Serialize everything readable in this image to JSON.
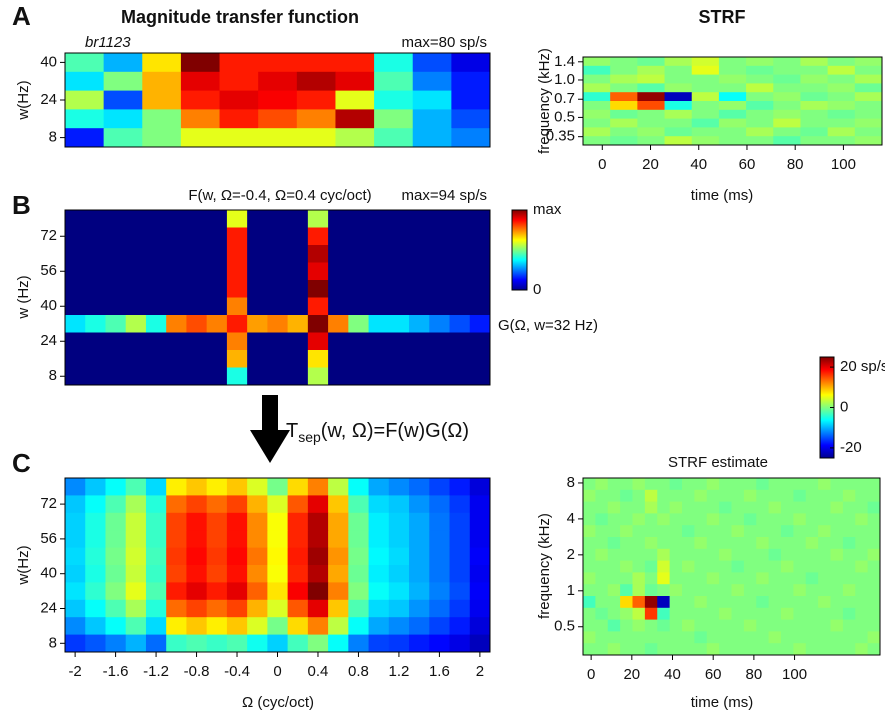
{
  "panel_labels": [
    "A",
    "B",
    "C"
  ],
  "column_titles": [
    "Magnitude transfer function",
    "STRF"
  ],
  "equation": {
    "base": "T",
    "sub": "sep",
    "rest": "(w, Ω)=F(w)G(Ω)"
  },
  "chart_data": [
    {
      "type": "heatmap",
      "annotations": [
        "br1123",
        "max=80 sp/s"
      ],
      "ylabel": "w(Hz)",
      "ylim": [
        4,
        44
      ],
      "yticks": [
        8,
        24,
        40
      ],
      "clim": [
        0,
        1
      ],
      "values": [
        [
          0.45,
          0.3,
          0.65,
          1.0,
          0.85,
          0.85,
          0.85,
          0.85,
          0.4,
          0.2,
          0.1
        ],
        [
          0.35,
          0.5,
          0.7,
          0.9,
          0.85,
          0.9,
          0.95,
          0.9,
          0.45,
          0.25,
          0.15
        ],
        [
          0.55,
          0.2,
          0.7,
          0.85,
          0.9,
          0.88,
          0.85,
          0.6,
          0.4,
          0.35,
          0.15
        ],
        [
          0.4,
          0.35,
          0.5,
          0.75,
          0.85,
          0.8,
          0.75,
          0.95,
          0.5,
          0.3,
          0.2
        ],
        [
          0.15,
          0.45,
          0.5,
          0.6,
          0.6,
          0.6,
          0.6,
          0.55,
          0.45,
          0.3,
          0.25
        ]
      ]
    },
    {
      "type": "heatmap",
      "title": "F(w, Ω=-0.4, Ω=0.4 cyc/oct)",
      "annotations": [
        "max=94 sp/s",
        "G(Ω, w=32 Hz)"
      ],
      "ylabel": "w (Hz)",
      "ylim": [
        4,
        84
      ],
      "yticks": [
        8,
        24,
        40,
        56,
        72
      ],
      "clim": [
        0,
        1
      ],
      "values": [
        [
          0,
          0,
          0,
          0,
          0,
          0,
          0,
          0,
          0.6,
          0,
          0,
          0,
          0.55,
          0,
          0,
          0,
          0,
          0,
          0,
          0,
          0
        ],
        [
          0,
          0,
          0,
          0,
          0,
          0,
          0,
          0,
          0.85,
          0,
          0,
          0,
          0.85,
          0,
          0,
          0,
          0,
          0,
          0,
          0,
          0
        ],
        [
          0,
          0,
          0,
          0,
          0,
          0,
          0,
          0,
          0.85,
          0,
          0,
          0,
          0.95,
          0,
          0,
          0,
          0,
          0,
          0,
          0,
          0
        ],
        [
          0,
          0,
          0,
          0,
          0,
          0,
          0,
          0,
          0.85,
          0,
          0,
          0,
          0.9,
          0,
          0,
          0,
          0,
          0,
          0,
          0,
          0
        ],
        [
          0,
          0,
          0,
          0,
          0,
          0,
          0,
          0,
          0.85,
          0,
          0,
          0,
          1.0,
          0,
          0,
          0,
          0,
          0,
          0,
          0,
          0
        ],
        [
          0,
          0,
          0,
          0,
          0,
          0,
          0,
          0,
          0.75,
          0,
          0,
          0,
          0.85,
          0,
          0,
          0,
          0,
          0,
          0,
          0,
          0
        ],
        [
          0.35,
          0.4,
          0.45,
          0.55,
          0.4,
          0.75,
          0.8,
          0.75,
          0.85,
          0.72,
          0.75,
          0.7,
          1.0,
          0.75,
          0.5,
          0.35,
          0.35,
          0.3,
          0.25,
          0.2,
          0.15
        ],
        [
          0,
          0,
          0,
          0,
          0,
          0,
          0,
          0,
          0.75,
          0,
          0,
          0,
          0.9,
          0,
          0,
          0,
          0,
          0,
          0,
          0,
          0
        ],
        [
          0,
          0,
          0,
          0,
          0,
          0,
          0,
          0,
          0.7,
          0,
          0,
          0,
          0.65,
          0,
          0,
          0,
          0,
          0,
          0,
          0,
          0
        ],
        [
          0,
          0,
          0,
          0,
          0,
          0,
          0,
          0,
          0.4,
          0,
          0,
          0,
          0.55,
          0,
          0,
          0,
          0,
          0,
          0,
          0,
          0
        ]
      ]
    },
    {
      "type": "heatmap",
      "ylabel": "w(Hz)",
      "xlabel": "Ω (cyc/oct)",
      "xlim": [
        -2.1,
        2.1
      ],
      "xticks": [
        -2,
        -1.6,
        -1.2,
        -0.8,
        -0.4,
        0,
        0.4,
        0.8,
        1.2,
        1.6,
        2
      ],
      "ylim": [
        4,
        84
      ],
      "yticks": [
        8,
        24,
        40,
        56,
        72
      ],
      "clim": [
        0,
        1
      ],
      "values": [
        [
          0.26,
          0.32,
          0.38,
          0.45,
          0.34,
          0.64,
          0.68,
          0.64,
          0.68,
          0.59,
          0.49,
          0.66,
          0.75,
          0.56,
          0.38,
          0.29,
          0.26,
          0.23,
          0.19,
          0.15,
          0.09
        ],
        [
          0.32,
          0.38,
          0.45,
          0.54,
          0.41,
          0.77,
          0.81,
          0.77,
          0.81,
          0.7,
          0.59,
          0.79,
          0.9,
          0.68,
          0.45,
          0.34,
          0.32,
          0.27,
          0.23,
          0.18,
          0.11
        ],
        [
          0.33,
          0.4,
          0.48,
          0.57,
          0.43,
          0.81,
          0.86,
          0.81,
          0.86,
          0.74,
          0.62,
          0.84,
          0.95,
          0.71,
          0.48,
          0.36,
          0.33,
          0.29,
          0.24,
          0.19,
          0.11
        ],
        [
          0.33,
          0.4,
          0.48,
          0.57,
          0.43,
          0.81,
          0.86,
          0.81,
          0.86,
          0.74,
          0.62,
          0.84,
          0.95,
          0.71,
          0.48,
          0.36,
          0.33,
          0.29,
          0.24,
          0.19,
          0.11
        ],
        [
          0.34,
          0.41,
          0.49,
          0.58,
          0.44,
          0.82,
          0.87,
          0.82,
          0.87,
          0.76,
          0.63,
          0.85,
          0.97,
          0.73,
          0.49,
          0.37,
          0.34,
          0.29,
          0.24,
          0.19,
          0.12
        ],
        [
          0.33,
          0.4,
          0.48,
          0.57,
          0.43,
          0.81,
          0.86,
          0.81,
          0.86,
          0.74,
          0.62,
          0.84,
          0.95,
          0.71,
          0.48,
          0.36,
          0.33,
          0.29,
          0.24,
          0.19,
          0.11
        ],
        [
          0.35,
          0.42,
          0.5,
          0.6,
          0.45,
          0.85,
          0.9,
          0.85,
          0.9,
          0.78,
          0.65,
          0.88,
          1.0,
          0.75,
          0.5,
          0.38,
          0.35,
          0.3,
          0.25,
          0.2,
          0.12
        ],
        [
          0.32,
          0.38,
          0.45,
          0.54,
          0.41,
          0.77,
          0.81,
          0.77,
          0.81,
          0.7,
          0.59,
          0.79,
          0.9,
          0.68,
          0.45,
          0.34,
          0.32,
          0.27,
          0.23,
          0.18,
          0.11
        ],
        [
          0.26,
          0.32,
          0.38,
          0.45,
          0.34,
          0.64,
          0.68,
          0.64,
          0.68,
          0.59,
          0.49,
          0.66,
          0.75,
          0.56,
          0.38,
          0.29,
          0.26,
          0.23,
          0.19,
          0.15,
          0.09
        ],
        [
          0.18,
          0.21,
          0.25,
          0.3,
          0.23,
          0.43,
          0.45,
          0.43,
          0.45,
          0.39,
          0.33,
          0.44,
          0.5,
          0.38,
          0.25,
          0.19,
          0.18,
          0.15,
          0.13,
          0.1,
          0.06
        ]
      ]
    },
    {
      "type": "heatmap",
      "xlabel": "time (ms)",
      "ylabel": "frequency (kHz)",
      "xlim": [
        -8,
        116
      ],
      "xticks": [
        0,
        20,
        40,
        60,
        80,
        100
      ],
      "ylim": [
        0.3,
        1.53
      ],
      "ylog": true,
      "yticks": [
        1.4,
        {
          "value": 1,
          "label": "1.0"
        },
        0.7,
        0.5,
        0.35
      ],
      "clim": [
        -25,
        25
      ],
      "values": [
        [
          1,
          0,
          -1,
          2,
          4,
          0,
          1,
          0,
          2,
          0,
          1
        ],
        [
          -3,
          0,
          2,
          0,
          5,
          0,
          -1,
          0,
          0,
          3,
          0
        ],
        [
          0,
          2,
          3,
          0,
          0,
          1,
          0,
          -1,
          1,
          0,
          2
        ],
        [
          2,
          0,
          -2,
          1,
          0,
          0,
          3,
          0,
          0,
          1,
          -1
        ],
        [
          -4,
          14,
          24,
          -22,
          3,
          -6,
          0,
          1,
          -1,
          0,
          2
        ],
        [
          0,
          8,
          15,
          -5,
          0,
          1,
          -2,
          0,
          2,
          1,
          0
        ],
        [
          1,
          -1,
          0,
          2,
          0,
          -2,
          0,
          1,
          0,
          -1,
          0
        ],
        [
          0,
          2,
          0,
          0,
          -2,
          1,
          0,
          3,
          0,
          0,
          1
        ],
        [
          2,
          0,
          1,
          -1,
          0,
          0,
          2,
          0,
          -1,
          2,
          0
        ],
        [
          0,
          -1,
          0,
          3,
          1,
          0,
          0,
          -2,
          0,
          0,
          1
        ]
      ]
    },
    {
      "type": "heatmap",
      "title": "STRF estimate",
      "xlabel": "time (ms)",
      "ylabel": "frequency (kHz)",
      "xlim": [
        -4,
        142
      ],
      "xticks": [
        0,
        20,
        40,
        60,
        80,
        100
      ],
      "ylim": [
        0.29,
        8.8
      ],
      "ylog": true,
      "yticks": [
        0.5,
        1,
        2,
        4,
        8
      ],
      "clim": [
        -25,
        25
      ],
      "values": [
        [
          0,
          1,
          0,
          0,
          1,
          0,
          0,
          -1,
          0,
          0,
          1,
          0,
          0,
          0,
          -1,
          0,
          0,
          0,
          0,
          1,
          0,
          0,
          0,
          0
        ],
        [
          1,
          0,
          0,
          -1,
          0,
          3,
          0,
          0,
          0,
          1,
          0,
          0,
          0,
          1,
          0,
          0,
          0,
          -1,
          0,
          0,
          0,
          1,
          0,
          0
        ],
        [
          0,
          0,
          1,
          0,
          0,
          2,
          0,
          1,
          0,
          0,
          0,
          -1,
          0,
          0,
          0,
          1,
          0,
          0,
          0,
          0,
          1,
          0,
          0,
          -1
        ],
        [
          0,
          -1,
          0,
          0,
          1,
          0,
          1,
          0,
          0,
          0,
          1,
          0,
          0,
          -1,
          0,
          0,
          0,
          1,
          0,
          0,
          0,
          0,
          1,
          0
        ],
        [
          1,
          0,
          0,
          1,
          0,
          0,
          0,
          0,
          -1,
          0,
          0,
          0,
          1,
          0,
          0,
          0,
          -1,
          0,
          0,
          1,
          0,
          0,
          0,
          0
        ],
        [
          0,
          0,
          -1,
          0,
          0,
          1,
          0,
          0,
          0,
          1,
          0,
          0,
          0,
          0,
          1,
          0,
          0,
          0,
          1,
          0,
          0,
          -1,
          0,
          0
        ],
        [
          0,
          1,
          0,
          0,
          0,
          0,
          2,
          0,
          0,
          0,
          0,
          1,
          0,
          0,
          0,
          -1,
          0,
          0,
          0,
          0,
          1,
          0,
          0,
          1
        ],
        [
          0,
          0,
          0,
          1,
          0,
          -1,
          4,
          0,
          1,
          0,
          0,
          0,
          -1,
          0,
          0,
          0,
          1,
          0,
          0,
          0,
          0,
          0,
          1,
          0
        ],
        [
          1,
          0,
          0,
          0,
          2,
          0,
          5,
          0,
          0,
          0,
          1,
          0,
          0,
          0,
          1,
          0,
          0,
          0,
          -1,
          0,
          0,
          0,
          0,
          0
        ],
        [
          0,
          0,
          1,
          -2,
          2,
          -1,
          0,
          1,
          0,
          0,
          0,
          0,
          1,
          0,
          0,
          0,
          0,
          1,
          0,
          0,
          0,
          1,
          0,
          0
        ],
        [
          -3,
          0,
          0,
          8,
          14,
          24,
          -22,
          0,
          0,
          1,
          0,
          0,
          0,
          0,
          -1,
          0,
          0,
          0,
          0,
          1,
          0,
          0,
          0,
          0
        ],
        [
          0,
          -1,
          0,
          1,
          3,
          16,
          -3,
          0,
          0,
          0,
          0,
          1,
          0,
          0,
          0,
          0,
          1,
          0,
          0,
          0,
          0,
          -1,
          0,
          0
        ],
        [
          0,
          0,
          -2,
          0,
          1,
          0,
          -1,
          0,
          1,
          0,
          0,
          0,
          0,
          1,
          0,
          0,
          0,
          0,
          0,
          0,
          1,
          0,
          0,
          0
        ],
        [
          1,
          0,
          0,
          0,
          0,
          0,
          0,
          0,
          0,
          -1,
          0,
          0,
          0,
          0,
          0,
          1,
          0,
          0,
          0,
          0,
          0,
          0,
          0,
          1
        ],
        [
          0,
          0,
          1,
          0,
          0,
          -1,
          0,
          0,
          0,
          0,
          1,
          0,
          0,
          0,
          0,
          0,
          0,
          1,
          0,
          0,
          0,
          0,
          1,
          0
        ]
      ]
    },
    {
      "type": "colorbar",
      "clim": [
        0,
        1
      ],
      "ticks": [
        {
          "value": 1,
          "label": "max"
        },
        0
      ]
    },
    {
      "type": "colorbar",
      "clim": [
        -25,
        25
      ],
      "ticks": [
        {
          "value": 20,
          "label": "20 sp/s"
        },
        0,
        -20
      ]
    }
  ]
}
